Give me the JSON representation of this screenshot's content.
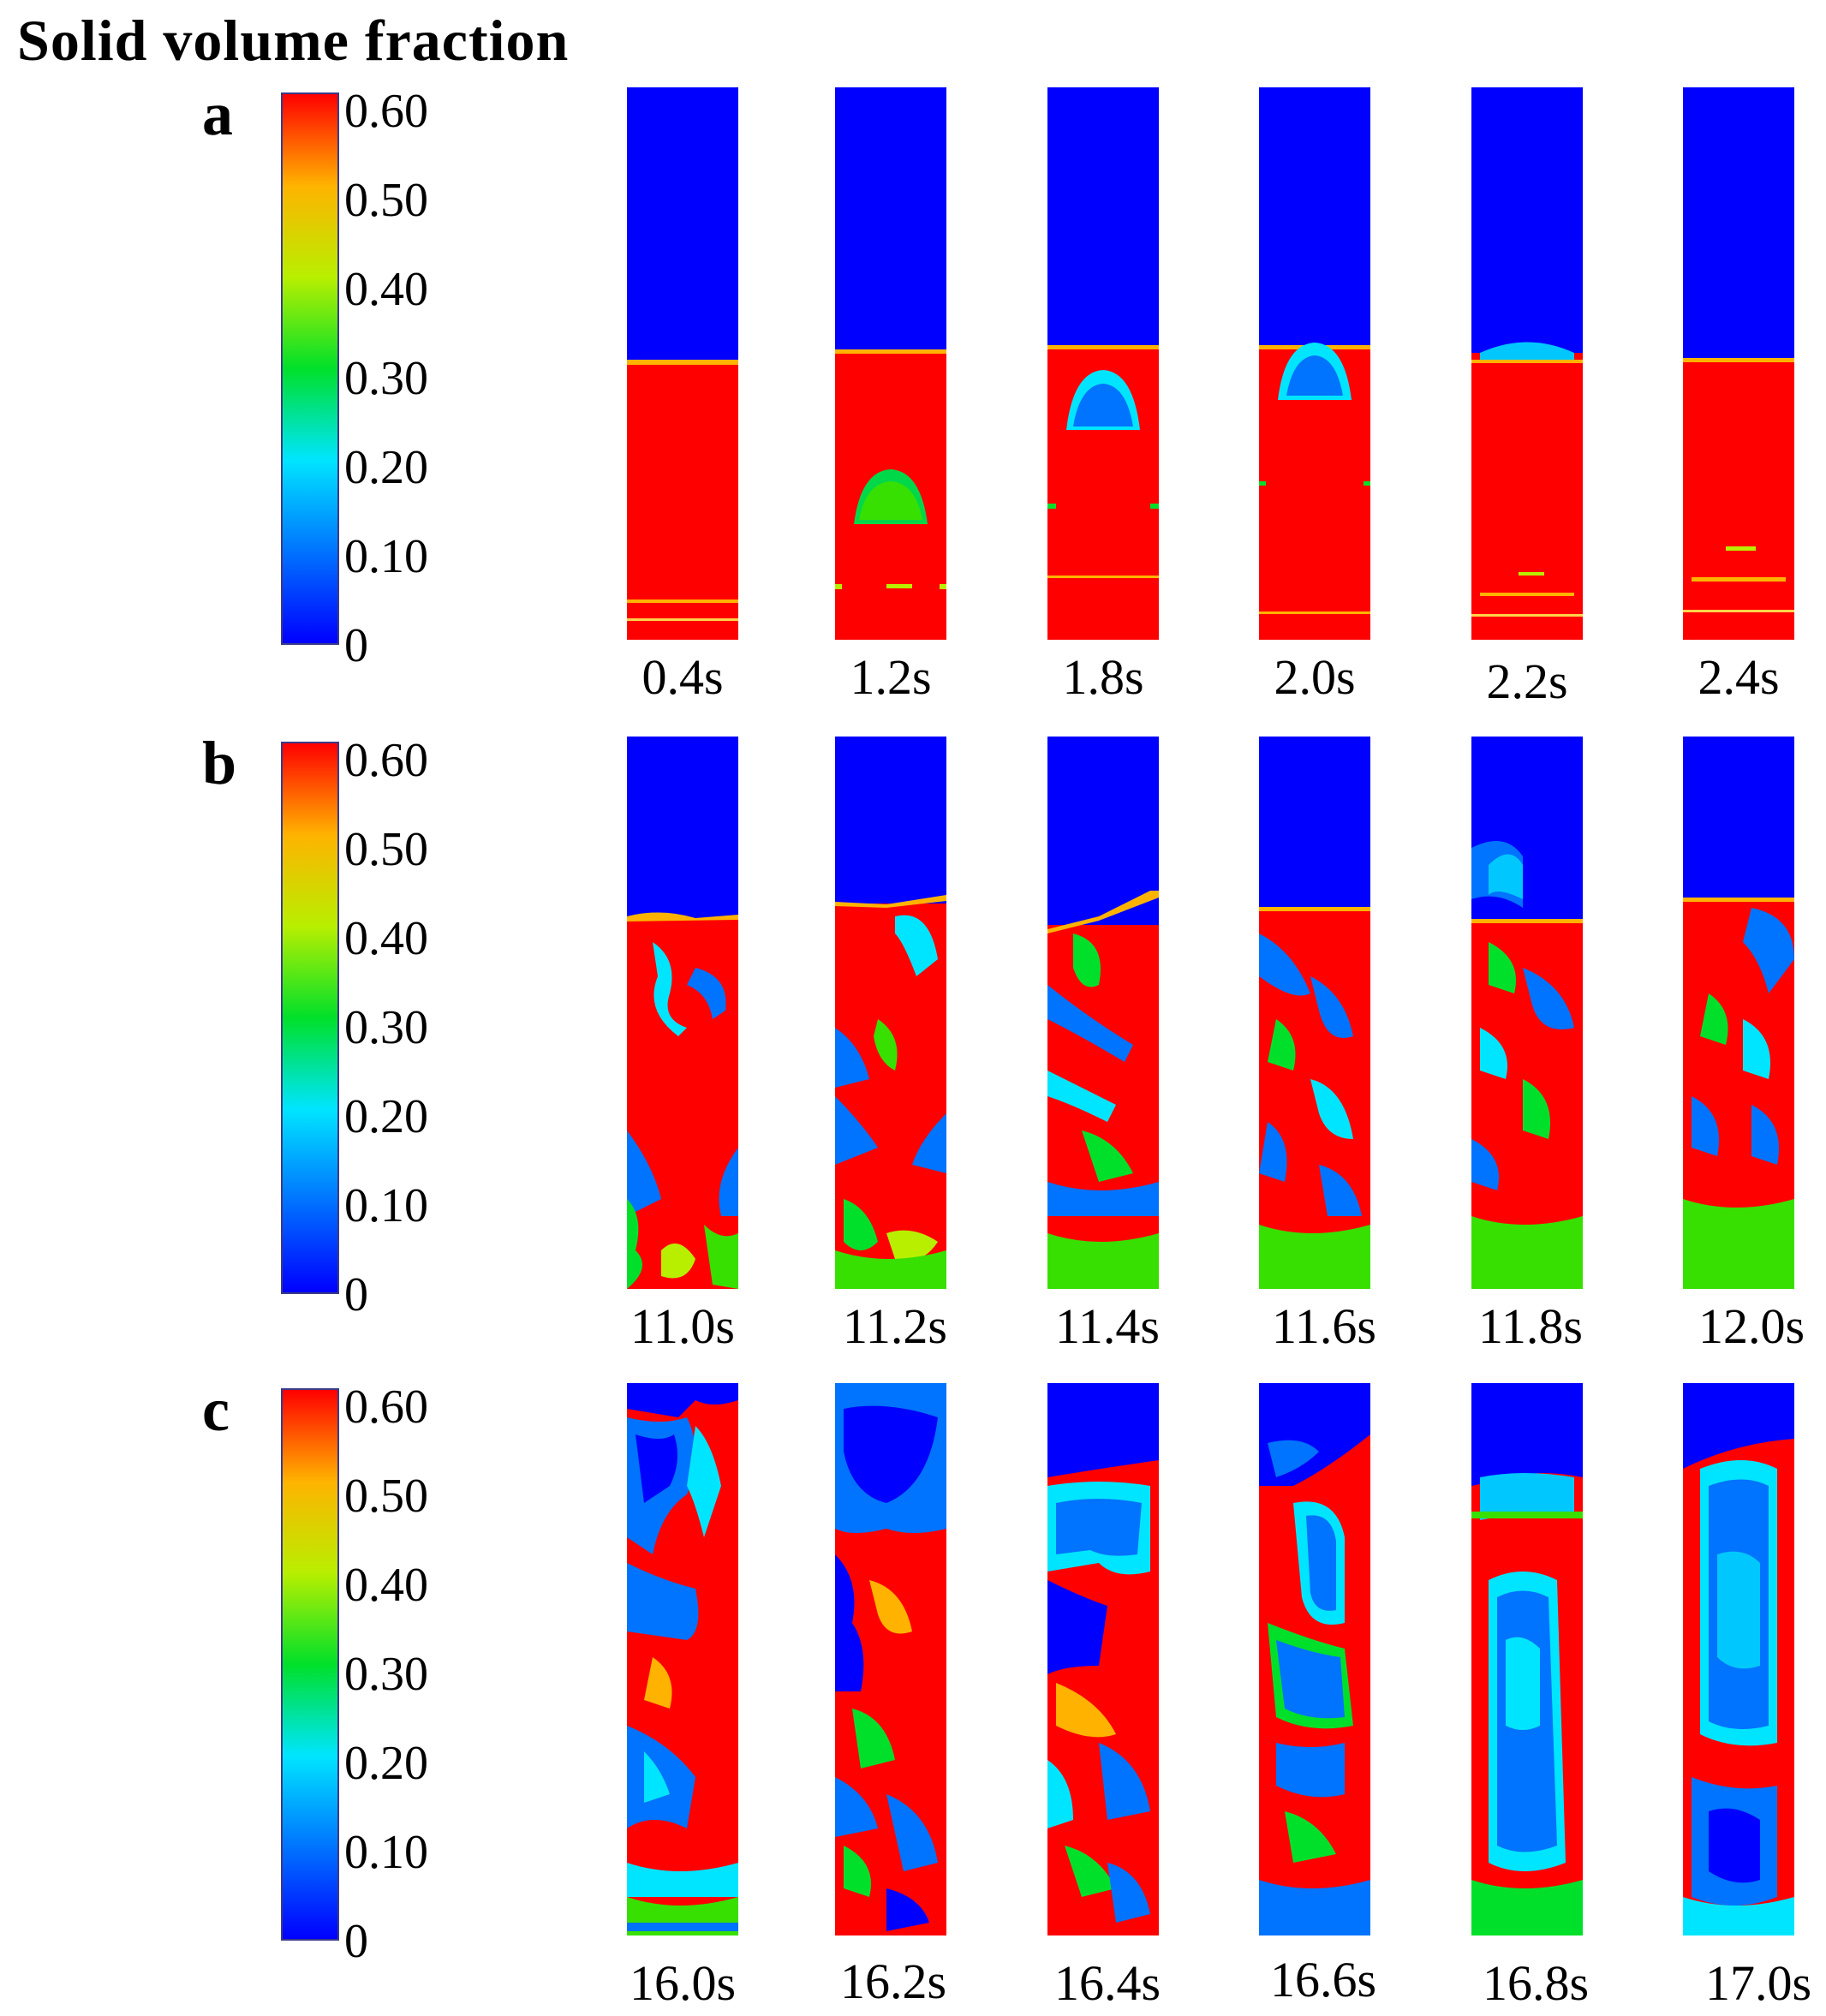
{
  "figure": {
    "title": "Solid volume fraction",
    "colormap": [
      "#0000ff",
      "#0073ff",
      "#00e5ff",
      "#00e02a",
      "#b8ef00",
      "#ffb300",
      "#ff0000"
    ],
    "colorbar_ticks": [
      "0.60",
      "0.50",
      "0.40",
      "0.30",
      "0.20",
      "0.10",
      "0"
    ],
    "rows": [
      {
        "label": "a",
        "times": [
          "0.4s",
          "1.2s",
          "1.8s",
          "2.0s",
          "2.2s",
          "2.4s"
        ]
      },
      {
        "label": "b",
        "times": [
          "11.0s",
          "11.2s",
          "11.4s",
          "11.6s",
          "11.8s",
          "12.0s"
        ]
      },
      {
        "label": "c",
        "times": [
          "16.0s",
          "16.2s",
          "16.4s",
          "16.6s",
          "16.8s",
          "17.0s"
        ]
      }
    ]
  }
}
